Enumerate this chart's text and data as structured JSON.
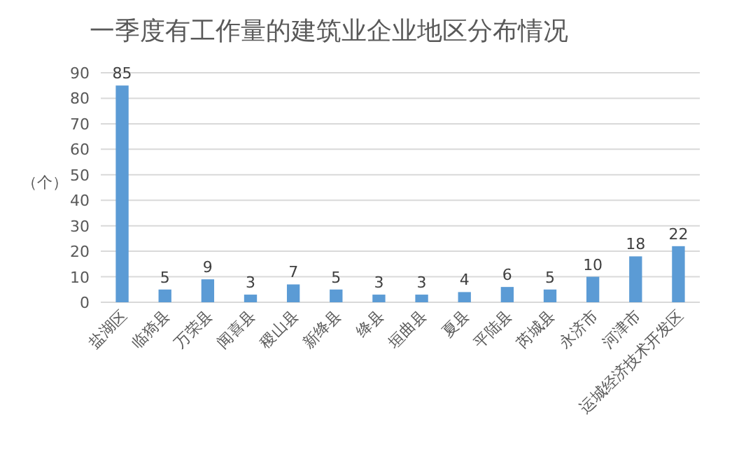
{
  "chart_data": {
    "type": "bar",
    "title": "一季度有工作量的建筑业企业地区分布情况",
    "ylabel": "（个）",
    "categories": [
      "盐湖区",
      "临猗县",
      "万荣县",
      "闻喜县",
      "稷山县",
      "新绛县",
      "绛县",
      "垣曲县",
      "夏县",
      "平陆县",
      "芮城县",
      "永济市",
      "河津市",
      "运城经济技术开发区"
    ],
    "values": [
      85,
      5,
      9,
      3,
      7,
      5,
      3,
      3,
      4,
      6,
      5,
      10,
      18,
      22
    ],
    "color": "#5b9bd5",
    "ylim": [
      0,
      90
    ],
    "yticks": [
      0,
      10,
      20,
      30,
      40,
      50,
      60,
      70,
      80,
      90
    ],
    "grid": "y",
    "data_labels": true
  }
}
